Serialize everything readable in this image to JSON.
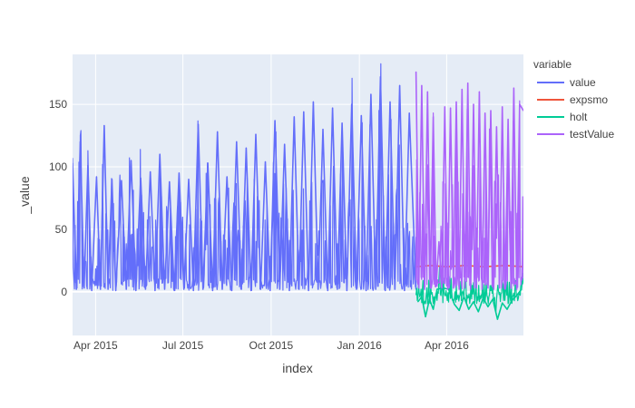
{
  "chart_data": {
    "type": "line",
    "title": "",
    "xlabel": "index",
    "ylabel": "_value",
    "x_range": [
      "2015-03-08",
      "2016-06-20"
    ],
    "ylim": [
      -35,
      190
    ],
    "x_ticks": [
      {
        "date": "2015-04-01",
        "label": "Apr 2015"
      },
      {
        "date": "2015-07-01",
        "label": "Jul 2015"
      },
      {
        "date": "2015-10-01",
        "label": "Oct 2015"
      },
      {
        "date": "2016-01-01",
        "label": "Jan 2016"
      },
      {
        "date": "2016-04-01",
        "label": "Apr 2016"
      }
    ],
    "y_ticks": [
      0,
      50,
      100,
      150
    ],
    "grid": true,
    "legend": {
      "title": "variable",
      "placement": "right"
    },
    "series": [
      {
        "name": "value",
        "color": "#636efa",
        "x_range": [
          "2015-03-08",
          "2016-02-29"
        ],
        "points": [
          {
            "x": "2015-03-08",
            "y": 103
          },
          {
            "x": "2015-03-12",
            "y": 2
          },
          {
            "x": "2015-03-16",
            "y": 120
          },
          {
            "x": "2015-03-20",
            "y": 3
          },
          {
            "x": "2015-03-24",
            "y": 101
          },
          {
            "x": "2015-03-28",
            "y": 1
          },
          {
            "x": "2015-04-02",
            "y": 92
          },
          {
            "x": "2015-04-06",
            "y": 2
          },
          {
            "x": "2015-04-10",
            "y": 133
          },
          {
            "x": "2015-04-14",
            "y": 2
          },
          {
            "x": "2015-04-18",
            "y": 90
          },
          {
            "x": "2015-04-22",
            "y": 1
          },
          {
            "x": "2015-04-28",
            "y": 89
          },
          {
            "x": "2015-05-03",
            "y": 2
          },
          {
            "x": "2015-05-08",
            "y": 105
          },
          {
            "x": "2015-05-13",
            "y": 1
          },
          {
            "x": "2015-05-18",
            "y": 91
          },
          {
            "x": "2015-05-23",
            "y": 2
          },
          {
            "x": "2015-05-28",
            "y": 96
          },
          {
            "x": "2015-06-02",
            "y": 1
          },
          {
            "x": "2015-06-07",
            "y": 110
          },
          {
            "x": "2015-06-12",
            "y": 2
          },
          {
            "x": "2015-06-17",
            "y": 88
          },
          {
            "x": "2015-06-22",
            "y": 1
          },
          {
            "x": "2015-06-27",
            "y": 95
          },
          {
            "x": "2015-07-02",
            "y": 2
          },
          {
            "x": "2015-07-07",
            "y": 90
          },
          {
            "x": "2015-07-12",
            "y": 1
          },
          {
            "x": "2015-07-17",
            "y": 134
          },
          {
            "x": "2015-07-22",
            "y": 2
          },
          {
            "x": "2015-07-27",
            "y": 103
          },
          {
            "x": "2015-08-01",
            "y": 1
          },
          {
            "x": "2015-08-06",
            "y": 128
          },
          {
            "x": "2015-08-11",
            "y": 2
          },
          {
            "x": "2015-08-16",
            "y": 92
          },
          {
            "x": "2015-08-21",
            "y": 1
          },
          {
            "x": "2015-08-26",
            "y": 120
          },
          {
            "x": "2015-08-31",
            "y": 2
          },
          {
            "x": "2015-09-05",
            "y": 115
          },
          {
            "x": "2015-09-10",
            "y": 1
          },
          {
            "x": "2015-09-15",
            "y": 126
          },
          {
            "x": "2015-09-20",
            "y": 2
          },
          {
            "x": "2015-09-25",
            "y": 104
          },
          {
            "x": "2015-09-30",
            "y": 1
          },
          {
            "x": "2015-10-05",
            "y": 137
          },
          {
            "x": "2015-10-10",
            "y": 2
          },
          {
            "x": "2015-10-15",
            "y": 118
          },
          {
            "x": "2015-10-20",
            "y": 1
          },
          {
            "x": "2015-10-25",
            "y": 140
          },
          {
            "x": "2015-10-30",
            "y": 2
          },
          {
            "x": "2015-11-04",
            "y": 144
          },
          {
            "x": "2015-11-09",
            "y": 1
          },
          {
            "x": "2015-11-14",
            "y": 152
          },
          {
            "x": "2015-11-19",
            "y": 2
          },
          {
            "x": "2015-11-24",
            "y": 130
          },
          {
            "x": "2015-11-29",
            "y": 1
          },
          {
            "x": "2015-12-04",
            "y": 147
          },
          {
            "x": "2015-12-09",
            "y": 2
          },
          {
            "x": "2015-12-14",
            "y": 135
          },
          {
            "x": "2015-12-19",
            "y": 1
          },
          {
            "x": "2015-12-24",
            "y": 150
          },
          {
            "x": "2015-12-29",
            "y": 2
          },
          {
            "x": "2016-01-03",
            "y": 141
          },
          {
            "x": "2016-01-08",
            "y": 1
          },
          {
            "x": "2016-01-13",
            "y": 158
          },
          {
            "x": "2016-01-18",
            "y": 2
          },
          {
            "x": "2016-01-23",
            "y": 172
          },
          {
            "x": "2016-01-28",
            "y": 1
          },
          {
            "x": "2016-02-02",
            "y": 152
          },
          {
            "x": "2016-02-07",
            "y": 2
          },
          {
            "x": "2016-02-12",
            "y": 165
          },
          {
            "x": "2016-02-17",
            "y": 1
          },
          {
            "x": "2016-02-22",
            "y": 143
          },
          {
            "x": "2016-02-29",
            "y": 2
          }
        ]
      },
      {
        "name": "expsmo",
        "color": "#ef553b",
        "x_range": [
          "2016-02-29",
          "2016-06-20"
        ],
        "points": [
          {
            "x": "2016-02-29",
            "y": 20
          },
          {
            "x": "2016-03-15",
            "y": 21
          },
          {
            "x": "2016-04-01",
            "y": 20
          },
          {
            "x": "2016-04-20",
            "y": 21
          },
          {
            "x": "2016-05-10",
            "y": 20
          },
          {
            "x": "2016-06-01",
            "y": 21
          },
          {
            "x": "2016-06-20",
            "y": 20
          }
        ]
      },
      {
        "name": "holt",
        "color": "#00cc96",
        "x_range": [
          "2016-02-29",
          "2016-06-20"
        ],
        "points": [
          {
            "x": "2016-03-02",
            "y": -8
          },
          {
            "x": "2016-03-06",
            "y": -4
          },
          {
            "x": "2016-03-10",
            "y": -20
          },
          {
            "x": "2016-03-14",
            "y": -6
          },
          {
            "x": "2016-03-18",
            "y": -14
          },
          {
            "x": "2016-03-22",
            "y": 2
          },
          {
            "x": "2016-03-28",
            "y": 3
          },
          {
            "x": "2016-04-03",
            "y": 2
          },
          {
            "x": "2016-04-09",
            "y": -10
          },
          {
            "x": "2016-04-14",
            "y": -15
          },
          {
            "x": "2016-04-19",
            "y": -4
          },
          {
            "x": "2016-04-24",
            "y": -14
          },
          {
            "x": "2016-04-29",
            "y": -8
          },
          {
            "x": "2016-05-04",
            "y": -16
          },
          {
            "x": "2016-05-09",
            "y": -5
          },
          {
            "x": "2016-05-14",
            "y": -12
          },
          {
            "x": "2016-05-19",
            "y": -6
          },
          {
            "x": "2016-05-24",
            "y": -22
          },
          {
            "x": "2016-05-29",
            "y": -9
          },
          {
            "x": "2016-06-03",
            "y": -14
          },
          {
            "x": "2016-06-08",
            "y": -7
          },
          {
            "x": "2016-06-13",
            "y": -3
          },
          {
            "x": "2016-06-18",
            "y": 2
          }
        ]
      },
      {
        "name": "testValue",
        "color": "#ab63fa",
        "x_range": [
          "2016-02-29",
          "2016-06-20"
        ],
        "points": [
          {
            "x": "2016-02-29",
            "y": 176
          },
          {
            "x": "2016-03-03",
            "y": 3
          },
          {
            "x": "2016-03-06",
            "y": 165
          },
          {
            "x": "2016-03-09",
            "y": 2
          },
          {
            "x": "2016-03-12",
            "y": 160
          },
          {
            "x": "2016-03-15",
            "y": 3
          },
          {
            "x": "2016-03-18",
            "y": 140
          },
          {
            "x": "2016-03-21",
            "y": 5
          },
          {
            "x": "2016-03-24",
            "y": 40
          },
          {
            "x": "2016-03-27",
            "y": 3
          },
          {
            "x": "2016-03-30",
            "y": 148
          },
          {
            "x": "2016-04-02",
            "y": 2
          },
          {
            "x": "2016-04-05",
            "y": 147
          },
          {
            "x": "2016-04-08",
            "y": 3
          },
          {
            "x": "2016-04-11",
            "y": 152
          },
          {
            "x": "2016-04-14",
            "y": 2
          },
          {
            "x": "2016-04-17",
            "y": 162
          },
          {
            "x": "2016-04-20",
            "y": 3
          },
          {
            "x": "2016-04-23",
            "y": 167
          },
          {
            "x": "2016-04-26",
            "y": 2
          },
          {
            "x": "2016-04-29",
            "y": 150
          },
          {
            "x": "2016-05-02",
            "y": 3
          },
          {
            "x": "2016-05-05",
            "y": 160
          },
          {
            "x": "2016-05-08",
            "y": 2
          },
          {
            "x": "2016-05-11",
            "y": 143
          },
          {
            "x": "2016-05-14",
            "y": 3
          },
          {
            "x": "2016-05-17",
            "y": 145
          },
          {
            "x": "2016-05-20",
            "y": 2
          },
          {
            "x": "2016-05-23",
            "y": 132
          },
          {
            "x": "2016-05-26",
            "y": 3
          },
          {
            "x": "2016-05-29",
            "y": 148
          },
          {
            "x": "2016-06-01",
            "y": 2
          },
          {
            "x": "2016-06-04",
            "y": 138
          },
          {
            "x": "2016-06-07",
            "y": 3
          },
          {
            "x": "2016-06-10",
            "y": 163
          },
          {
            "x": "2016-06-13",
            "y": 2
          },
          {
            "x": "2016-06-16",
            "y": 150
          },
          {
            "x": "2016-06-20",
            "y": 145
          }
        ]
      }
    ]
  }
}
